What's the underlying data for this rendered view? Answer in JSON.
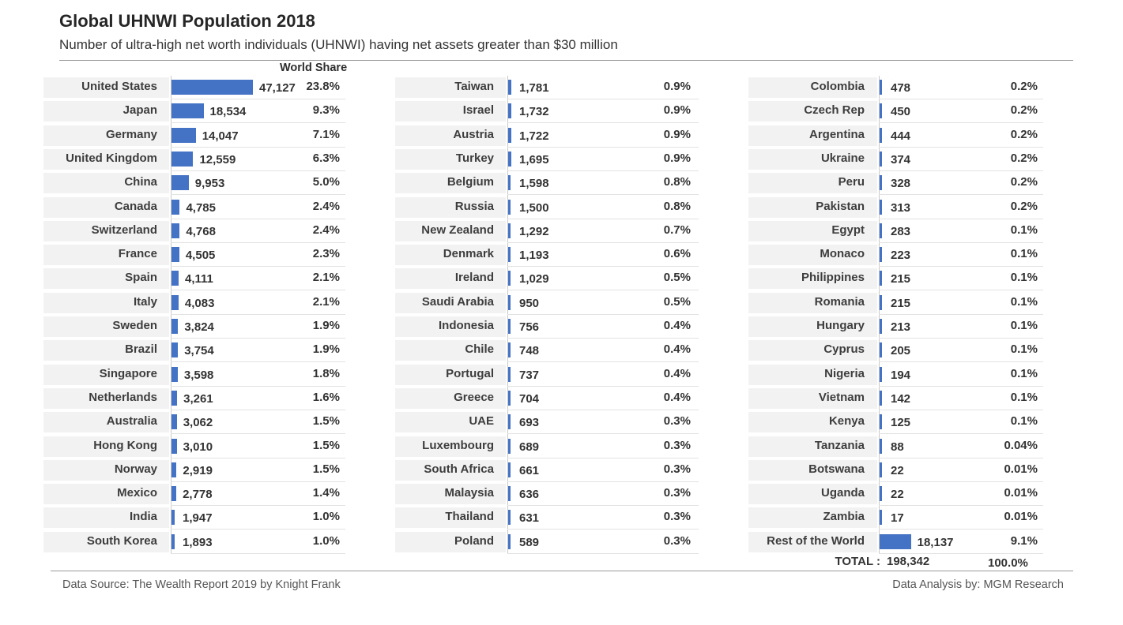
{
  "title": "Global UHNWI Population 2018",
  "subtitle": "Number of ultra-high net worth individuals (UHNWI) having net assets greater than $30 million",
  "share_header": "World Share",
  "footer": {
    "source": "Data Source: The Wealth Report 2019 by Knight Frank",
    "analysis": "Data Analysis by: MGM Research"
  },
  "total": {
    "label": "TOTAL :",
    "value": "198,342",
    "share": "100.0%"
  },
  "colors": {
    "bar": "#4472c4",
    "row_shade": "#f2f2f2"
  },
  "chart_data": {
    "type": "bar",
    "orientation": "horizontal",
    "value_label": "World Share",
    "columns": [
      [
        {
          "country": "United States",
          "value": 47127,
          "label": "47,127",
          "share": "23.8%"
        },
        {
          "country": "Japan",
          "value": 18534,
          "label": "18,534",
          "share": "9.3%"
        },
        {
          "country": "Germany",
          "value": 14047,
          "label": "14,047",
          "share": "7.1%"
        },
        {
          "country": "United Kingdom",
          "value": 12559,
          "label": "12,559",
          "share": "6.3%"
        },
        {
          "country": "China",
          "value": 9953,
          "label": "9,953",
          "share": "5.0%"
        },
        {
          "country": "Canada",
          "value": 4785,
          "label": "4,785",
          "share": "2.4%"
        },
        {
          "country": "Switzerland",
          "value": 4768,
          "label": "4,768",
          "share": "2.4%"
        },
        {
          "country": "France",
          "value": 4505,
          "label": "4,505",
          "share": "2.3%"
        },
        {
          "country": "Spain",
          "value": 4111,
          "label": "4,111",
          "share": "2.1%"
        },
        {
          "country": "Italy",
          "value": 4083,
          "label": "4,083",
          "share": "2.1%"
        },
        {
          "country": "Sweden",
          "value": 3824,
          "label": "3,824",
          "share": "1.9%"
        },
        {
          "country": "Brazil",
          "value": 3754,
          "label": "3,754",
          "share": "1.9%"
        },
        {
          "country": "Singapore",
          "value": 3598,
          "label": "3,598",
          "share": "1.8%"
        },
        {
          "country": "Netherlands",
          "value": 3261,
          "label": "3,261",
          "share": "1.6%"
        },
        {
          "country": "Australia",
          "value": 3062,
          "label": "3,062",
          "share": "1.5%"
        },
        {
          "country": "Hong Kong",
          "value": 3010,
          "label": "3,010",
          "share": "1.5%"
        },
        {
          "country": "Norway",
          "value": 2919,
          "label": "2,919",
          "share": "1.5%"
        },
        {
          "country": "Mexico",
          "value": 2778,
          "label": "2,778",
          "share": "1.4%"
        },
        {
          "country": "India",
          "value": 1947,
          "label": "1,947",
          "share": "1.0%"
        },
        {
          "country": "South Korea",
          "value": 1893,
          "label": "1,893",
          "share": "1.0%"
        }
      ],
      [
        {
          "country": "Taiwan",
          "value": 1781,
          "label": "1,781",
          "share": "0.9%"
        },
        {
          "country": "Israel",
          "value": 1732,
          "label": "1,732",
          "share": "0.9%"
        },
        {
          "country": "Austria",
          "value": 1722,
          "label": "1,722",
          "share": "0.9%"
        },
        {
          "country": "Turkey",
          "value": 1695,
          "label": "1,695",
          "share": "0.9%"
        },
        {
          "country": "Belgium",
          "value": 1598,
          "label": "1,598",
          "share": "0.8%"
        },
        {
          "country": "Russia",
          "value": 1500,
          "label": "1,500",
          "share": "0.8%"
        },
        {
          "country": "New Zealand",
          "value": 1292,
          "label": "1,292",
          "share": "0.7%"
        },
        {
          "country": "Denmark",
          "value": 1193,
          "label": "1,193",
          "share": "0.6%"
        },
        {
          "country": "Ireland",
          "value": 1029,
          "label": "1,029",
          "share": "0.5%"
        },
        {
          "country": "Saudi Arabia",
          "value": 950,
          "label": "950",
          "share": "0.5%"
        },
        {
          "country": "Indonesia",
          "value": 756,
          "label": "756",
          "share": "0.4%"
        },
        {
          "country": "Chile",
          "value": 748,
          "label": "748",
          "share": "0.4%"
        },
        {
          "country": "Portugal",
          "value": 737,
          "label": "737",
          "share": "0.4%"
        },
        {
          "country": "Greece",
          "value": 704,
          "label": "704",
          "share": "0.4%"
        },
        {
          "country": "UAE",
          "value": 693,
          "label": "693",
          "share": "0.3%"
        },
        {
          "country": "Luxembourg",
          "value": 689,
          "label": "689",
          "share": "0.3%"
        },
        {
          "country": "South Africa",
          "value": 661,
          "label": "661",
          "share": "0.3%"
        },
        {
          "country": "Malaysia",
          "value": 636,
          "label": "636",
          "share": "0.3%"
        },
        {
          "country": "Thailand",
          "value": 631,
          "label": "631",
          "share": "0.3%"
        },
        {
          "country": "Poland",
          "value": 589,
          "label": "589",
          "share": "0.3%"
        }
      ],
      [
        {
          "country": "Colombia",
          "value": 478,
          "label": "478",
          "share": "0.2%"
        },
        {
          "country": "Czech Rep",
          "value": 450,
          "label": "450",
          "share": "0.2%"
        },
        {
          "country": "Argentina",
          "value": 444,
          "label": "444",
          "share": "0.2%"
        },
        {
          "country": "Ukraine",
          "value": 374,
          "label": "374",
          "share": "0.2%"
        },
        {
          "country": "Peru",
          "value": 328,
          "label": "328",
          "share": "0.2%"
        },
        {
          "country": "Pakistan",
          "value": 313,
          "label": "313",
          "share": "0.2%"
        },
        {
          "country": "Egypt",
          "value": 283,
          "label": "283",
          "share": "0.1%"
        },
        {
          "country": "Monaco",
          "value": 223,
          "label": "223",
          "share": "0.1%"
        },
        {
          "country": "Philippines",
          "value": 215,
          "label": "215",
          "share": "0.1%"
        },
        {
          "country": "Romania",
          "value": 215,
          "label": "215",
          "share": "0.1%"
        },
        {
          "country": "Hungary",
          "value": 213,
          "label": "213",
          "share": "0.1%"
        },
        {
          "country": "Cyprus",
          "value": 205,
          "label": "205",
          "share": "0.1%"
        },
        {
          "country": "Nigeria",
          "value": 194,
          "label": "194",
          "share": "0.1%"
        },
        {
          "country": "Vietnam",
          "value": 142,
          "label": "142",
          "share": "0.1%"
        },
        {
          "country": "Kenya",
          "value": 125,
          "label": "125",
          "share": "0.1%"
        },
        {
          "country": "Tanzania",
          "value": 88,
          "label": "88",
          "share": "0.04%"
        },
        {
          "country": "Botswana",
          "value": 22,
          "label": "22",
          "share": "0.01%"
        },
        {
          "country": "Uganda",
          "value": 22,
          "label": "22",
          "share": "0.01%"
        },
        {
          "country": "Zambia",
          "value": 17,
          "label": "17",
          "share": "0.01%"
        },
        {
          "country": "Rest of the World",
          "value": 18137,
          "label": "18,137",
          "share": "9.1%"
        }
      ]
    ]
  }
}
